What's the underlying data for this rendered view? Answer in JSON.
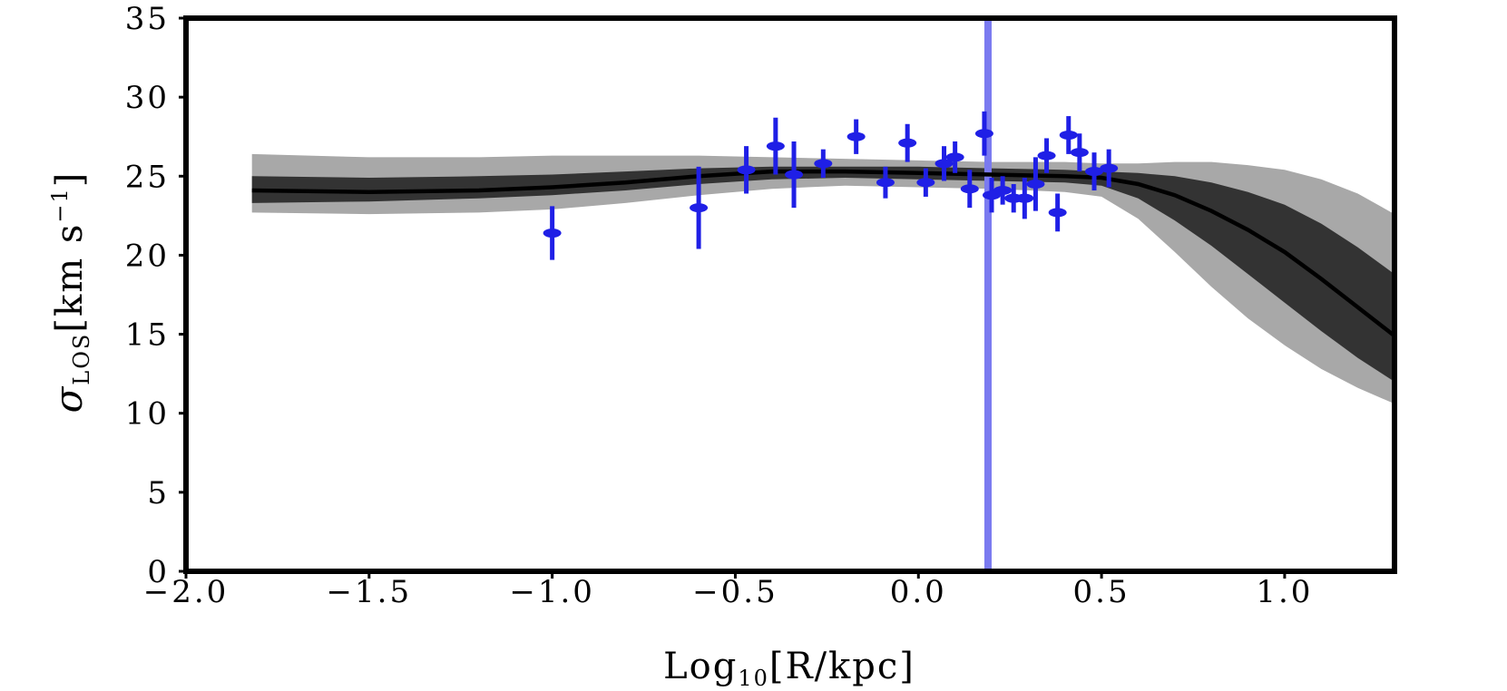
{
  "chart_data": {
    "type": "scatter",
    "title": "",
    "xlabel_parts": {
      "main": "Log",
      "sub": "10",
      "bracket": "[R/kpc]"
    },
    "ylabel_parts": {
      "symbol": "σ",
      "sub": "LOS",
      "unit": "[km s",
      "exp": "−1",
      "close": "]"
    },
    "xlim": [
      -2.0,
      1.3
    ],
    "ylim": [
      0,
      35
    ],
    "xticks": [
      -2.0,
      -1.5,
      -1.0,
      -0.5,
      0.0,
      0.5,
      1.0
    ],
    "xtick_labels": [
      "−2.0",
      "−1.5",
      "−1.0",
      "−0.5",
      "0.0",
      "0.5",
      "1.0"
    ],
    "yticks": [
      0,
      5,
      10,
      15,
      20,
      25,
      30,
      35
    ],
    "ytick_labels": [
      "0",
      "5",
      "10",
      "15",
      "20",
      "25",
      "30",
      "35"
    ],
    "grid": false,
    "colors": {
      "points": "#1f1fe6",
      "vline": "#7a7af0",
      "median": "#000000",
      "band_inner": "#333333",
      "band_outer": "#a8a8a8"
    },
    "vertical_line_x": 0.19,
    "model": {
      "x": [
        -1.82,
        -1.5,
        -1.2,
        -1.0,
        -0.8,
        -0.6,
        -0.4,
        -0.2,
        0.0,
        0.2,
        0.4,
        0.5,
        0.6,
        0.7,
        0.8,
        0.9,
        1.0,
        1.1,
        1.2,
        1.3
      ],
      "median": [
        24.1,
        24.0,
        24.1,
        24.3,
        24.6,
        25.0,
        25.3,
        25.3,
        25.2,
        25.1,
        25.0,
        24.9,
        24.5,
        23.8,
        22.8,
        21.6,
        20.2,
        18.5,
        16.7,
        14.9
      ],
      "inner_lower": [
        23.3,
        23.4,
        23.6,
        23.8,
        24.1,
        24.5,
        24.8,
        24.9,
        24.8,
        24.7,
        24.6,
        24.4,
        23.6,
        22.2,
        20.6,
        18.8,
        17.0,
        15.2,
        13.5,
        12.0
      ],
      "inner_upper": [
        25.0,
        24.9,
        25.0,
        25.1,
        25.3,
        25.5,
        25.6,
        25.6,
        25.6,
        25.5,
        25.4,
        25.3,
        25.2,
        25.0,
        24.6,
        24.0,
        23.2,
        22.0,
        20.5,
        18.8
      ],
      "outer_lower": [
        22.7,
        22.6,
        22.7,
        22.9,
        23.3,
        23.8,
        24.2,
        24.4,
        24.3,
        24.2,
        24.0,
        23.7,
        22.3,
        20.2,
        18.0,
        16.0,
        14.3,
        12.8,
        11.6,
        10.6
      ],
      "outer_upper": [
        26.4,
        26.2,
        26.2,
        26.3,
        26.3,
        26.3,
        26.2,
        26.1,
        26.0,
        25.9,
        25.9,
        25.8,
        25.8,
        25.9,
        25.9,
        25.7,
        25.4,
        24.8,
        23.9,
        22.6
      ]
    },
    "series": [
      {
        "x": [
          -1.0,
          -0.6,
          -0.47,
          -0.39,
          -0.34,
          -0.26,
          -0.17,
          -0.09,
          -0.03,
          0.02,
          0.07,
          0.1,
          0.14,
          0.18,
          0.2,
          0.23,
          0.26,
          0.29,
          0.32,
          0.35,
          0.38,
          0.41,
          0.44,
          0.48,
          0.52
        ],
        "y": [
          21.4,
          23.0,
          25.4,
          26.9,
          25.1,
          25.8,
          27.5,
          24.6,
          27.1,
          24.6,
          25.8,
          26.2,
          24.2,
          27.7,
          23.8,
          24.1,
          23.6,
          23.6,
          24.5,
          26.3,
          22.7,
          27.6,
          26.5,
          25.3,
          25.5
        ],
        "yerr": [
          1.7,
          2.6,
          1.5,
          1.8,
          2.1,
          0.9,
          1.1,
          1.0,
          1.2,
          0.9,
          1.1,
          1.0,
          1.2,
          1.4,
          1.1,
          0.9,
          0.9,
          1.3,
          1.7,
          1.1,
          1.2,
          1.2,
          1.2,
          1.2,
          1.2
        ]
      }
    ]
  }
}
